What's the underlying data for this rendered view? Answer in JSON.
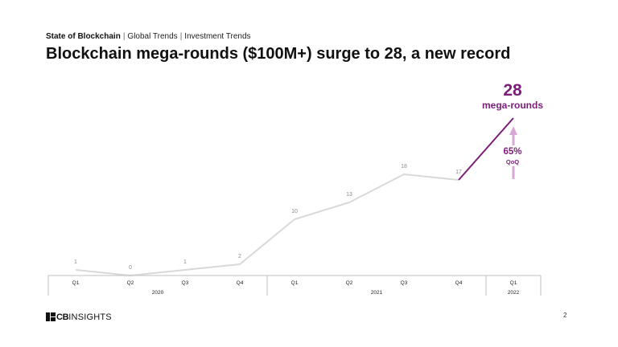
{
  "header": {
    "breadcrumb": [
      "State of Blockchain",
      "Global Trends",
      "Investment Trends"
    ],
    "title": "Blockchain mega-rounds ($100M+) surge to 28, a new record"
  },
  "callout": {
    "value": "28",
    "value_label": "mega-rounds",
    "growth": "65%",
    "growth_label": "QoQ"
  },
  "chart_data": {
    "type": "line",
    "title": "",
    "xlabel": "",
    "ylabel": "",
    "categories": [
      "Q1",
      "Q2",
      "Q3",
      "Q4",
      "Q1",
      "Q2",
      "Q3",
      "Q4",
      "Q1"
    ],
    "years": [
      {
        "label": "2020",
        "span": 4
      },
      {
        "label": "2021",
        "span": 4
      },
      {
        "label": "2022",
        "span": 1
      }
    ],
    "series": [
      {
        "values": [
          1,
          0,
          1,
          2,
          10,
          13,
          18,
          17,
          28
        ]
      }
    ],
    "highlight_last_segment": true,
    "ylim": [
      0,
      28
    ],
    "grid": false,
    "legend": "none",
    "colors": {
      "line": "#d9d9d9",
      "highlight": "#7b1e7a",
      "arrow": "#d7a8d6",
      "axis": "#bfbfbf",
      "label": "#8c8c8c"
    }
  },
  "footer": {
    "logo_cb": "CB",
    "logo_insights": "INSIGHTS",
    "page_number": "2"
  }
}
